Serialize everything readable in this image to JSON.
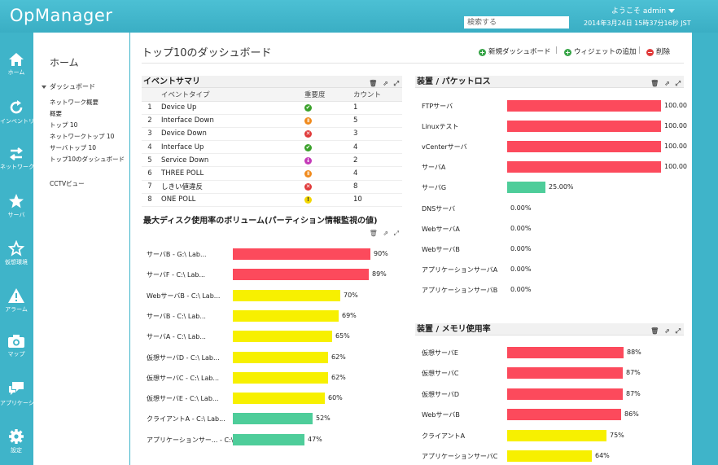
{
  "header": {
    "app_title": "OpManager",
    "welcome": "ようこそ  admin",
    "search_placeholder": "検索する",
    "datetime": "2014年3月24日 15時37分16秒 JST"
  },
  "rail": [
    {
      "label": "ホーム",
      "icon": "home-icon"
    },
    {
      "label": "インベントリ",
      "icon": "refresh-icon"
    },
    {
      "label": "ネットワーク",
      "icon": "network-arrows-icon"
    },
    {
      "label": "サーバ",
      "icon": "star-icon"
    },
    {
      "label": "仮想環境",
      "icon": "star-outline-icon"
    },
    {
      "label": "アラーム",
      "icon": "alarm-warning-icon"
    },
    {
      "label": "マップ",
      "icon": "camera-icon"
    },
    {
      "label": "アプリケーション",
      "icon": "chat-icon"
    },
    {
      "label": "設定",
      "icon": "gear-icon"
    }
  ],
  "leftnav": {
    "home": "ホーム",
    "section": "ダッシュボード",
    "items": [
      "ネットワーク概要",
      "概要",
      "トップ 10",
      "ネットワークトップ 10",
      "サーバトップ 10",
      "トップ10のダッシュボード"
    ],
    "extra": "CCTVビュー"
  },
  "main": {
    "title": "トップ10のダッシュボード",
    "toolbar": {
      "new_dashboard": "新規ダッシュボード",
      "add_widget": "ウィジェットの追加",
      "delete": "削除",
      "sep": "|"
    }
  },
  "event_summary": {
    "title": "イベントサマリ",
    "columns": [
      "",
      "イベントタイプ",
      "重要度",
      "カウント"
    ],
    "rows": [
      {
        "no": "1",
        "type": "Device Up",
        "severity": "clear",
        "count": "1"
      },
      {
        "no": "2",
        "type": "Interface Down",
        "severity": "trouble",
        "count": "5"
      },
      {
        "no": "3",
        "type": "Device Down",
        "severity": "critical",
        "count": "3"
      },
      {
        "no": "4",
        "type": "Interface Up",
        "severity": "clear",
        "count": "4"
      },
      {
        "no": "5",
        "type": "Service Down",
        "severity": "attention",
        "count": "2"
      },
      {
        "no": "6",
        "type": "THREE POLL",
        "severity": "trouble",
        "count": "4"
      },
      {
        "no": "7",
        "type": "しきい値違反",
        "severity": "critical",
        "count": "8"
      },
      {
        "no": "8",
        "type": "ONE POLL",
        "severity": "warning",
        "count": "10"
      }
    ],
    "colors": {
      "clear": "#3aa12a",
      "trouble": "#f08a1c",
      "critical": "#e03a3a",
      "attention": "#c43ab8",
      "warning": "#f2d600"
    },
    "glyphs": {
      "clear": "✔",
      "trouble": "॥",
      "critical": "✕",
      "attention": "↓",
      "warning": "!"
    }
  },
  "disk_volume": {
    "title": "最大ディスク使用率のボリューム(パーティション情報監視の値)",
    "max": 100,
    "items": [
      {
        "label": "サーバB - G:\\ Lab...",
        "value": 90,
        "display": "90%",
        "color": "#fc4a5c"
      },
      {
        "label": "サーバF - C:\\ Lab...",
        "value": 89,
        "display": "89%",
        "color": "#fc4a5c"
      },
      {
        "label": "WebサーバB - C:\\ Lab...",
        "value": 70,
        "display": "70%",
        "color": "#f7f000"
      },
      {
        "label": "サーバB - C:\\ Lab...",
        "value": 69,
        "display": "69%",
        "color": "#f7f000"
      },
      {
        "label": "サーバA - C:\\ Lab...",
        "value": 65,
        "display": "65%",
        "color": "#f7f000"
      },
      {
        "label": "仮想サーバD - C:\\ Lab...",
        "value": 62,
        "display": "62%",
        "color": "#f7f000"
      },
      {
        "label": "仮想サーバC - C:\\ Lab...",
        "value": 62,
        "display": "62%",
        "color": "#f7f000"
      },
      {
        "label": "仮想サーバE - C:\\ Lab...",
        "value": 60,
        "display": "60%",
        "color": "#f7f000"
      },
      {
        "label": "クライアントA - C:\\ Lab...",
        "value": 52,
        "display": "52%",
        "color": "#4ecd9a"
      },
      {
        "label": "アプリケーションサー... - C:\\ Lab...",
        "value": 47,
        "display": "47%",
        "color": "#4ecd9a"
      }
    ]
  },
  "packet_loss": {
    "title": "装置 / パケットロス",
    "max": 100,
    "items": [
      {
        "label": "FTPサーバ",
        "value": 100,
        "display": "100.00",
        "color": "#fc4a5c"
      },
      {
        "label": "Linuxテスト",
        "value": 100,
        "display": "100.00",
        "color": "#fc4a5c"
      },
      {
        "label": "vCenterサーバ",
        "value": 100,
        "display": "100.00",
        "color": "#fc4a5c"
      },
      {
        "label": "サーバA",
        "value": 100,
        "display": "100.00",
        "color": "#fc4a5c"
      },
      {
        "label": "サーバG",
        "value": 25,
        "display": "25.00%",
        "color": "#4ecd9a"
      },
      {
        "label": "DNSサーバ",
        "value": 0,
        "display": "0.00%",
        "color": "#4ecd9a"
      },
      {
        "label": "WebサーバA",
        "value": 0,
        "display": "0.00%",
        "color": "#4ecd9a"
      },
      {
        "label": "WebサーバB",
        "value": 0,
        "display": "0.00%",
        "color": "#4ecd9a"
      },
      {
        "label": "アプリケーションサーバA",
        "value": 0,
        "display": "0.00%",
        "color": "#4ecd9a"
      },
      {
        "label": "アプリケーションサーバB",
        "value": 0,
        "display": "0.00%",
        "color": "#4ecd9a"
      }
    ]
  },
  "memory": {
    "title": "装置 / メモリ使用率",
    "max": 100,
    "items": [
      {
        "label": "仮想サーバE",
        "value": 88,
        "display": "88%",
        "color": "#fc4a5c"
      },
      {
        "label": "仮想サーバC",
        "value": 87,
        "display": "87%",
        "color": "#fc4a5c"
      },
      {
        "label": "仮想サーバD",
        "value": 87,
        "display": "87%",
        "color": "#fc4a5c"
      },
      {
        "label": "WebサーバB",
        "value": 86,
        "display": "86%",
        "color": "#fc4a5c"
      },
      {
        "label": "クライアントA",
        "value": 75,
        "display": "75%",
        "color": "#f7f000"
      },
      {
        "label": "アプリケーションサーバC",
        "value": 64,
        "display": "64%",
        "color": "#f7f000"
      }
    ]
  },
  "widget_icons": "🗑 ⇗ ⤢"
}
